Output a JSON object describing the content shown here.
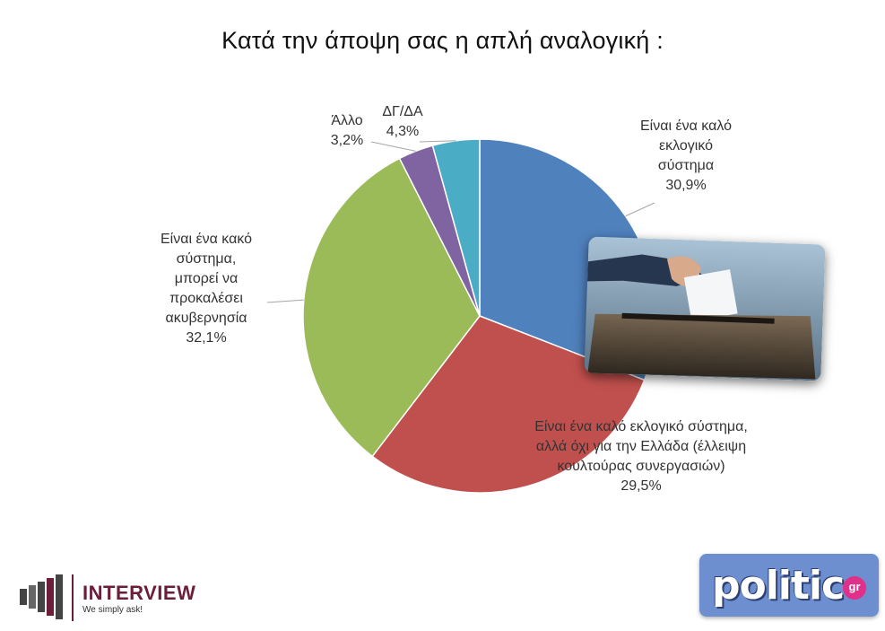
{
  "title": "Κατά την άποψη σας η απλή αναλογική :",
  "chart_data": {
    "type": "pie",
    "title": "Κατά την άποψη σας η απλή αναλογική :",
    "slices": [
      {
        "label_lines": [
          "Είναι ένα καλό",
          "εκλογικό",
          "σύστημα"
        ],
        "value_label": "30,9%",
        "value": 30.9,
        "color": "#4f81bd"
      },
      {
        "label_lines": [
          "Είναι ένα καλό εκλογικό σύστημα,",
          "αλλά όχι για την Ελλάδα (έλλειψη",
          "κουλτούρας συνεργασιών)"
        ],
        "value_label": "29,5%",
        "value": 29.5,
        "color": "#c0504d"
      },
      {
        "label_lines": [
          "Είναι ένα κακό",
          "σύστημα,",
          "μπορεί να",
          "προκαλέσει",
          "ακυβερνησία"
        ],
        "value_label": "32,1%",
        "value": 32.1,
        "color": "#9bbb59"
      },
      {
        "label_lines": [
          "Άλλο"
        ],
        "value_label": "3,2%",
        "value": 3.2,
        "color": "#8064a2"
      },
      {
        "label_lines": [
          "ΔΓ/ΔΑ"
        ],
        "value_label": "4,3%",
        "value": 4.3,
        "color": "#4bacc6"
      }
    ]
  },
  "logos": {
    "interview": {
      "name": "INTERVIEW",
      "tagline": "We simply ask!"
    },
    "politic": {
      "name": "politic",
      "suffix": "gr"
    }
  }
}
